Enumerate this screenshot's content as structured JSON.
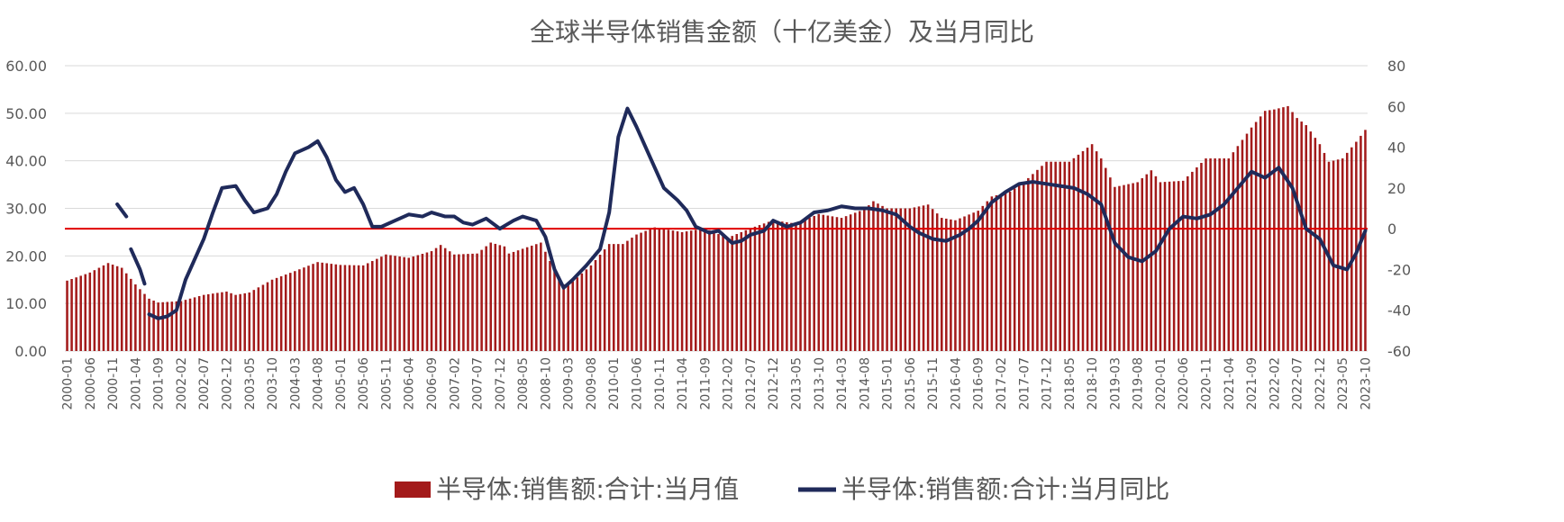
{
  "chart_data": {
    "type": "bar+line",
    "title": "全球半导体销售金额（十亿美金）及当月同比",
    "y_left": {
      "range": [
        0,
        60
      ],
      "ticks": [
        "0.00",
        "10.00",
        "20.00",
        "30.00",
        "40.00",
        "50.00",
        "60.00"
      ]
    },
    "y_right": {
      "range": [
        -60,
        80
      ],
      "ticks": [
        "-60",
        "-40",
        "-20",
        "0",
        "20",
        "40",
        "60",
        "80"
      ]
    },
    "x_start": "2000-01",
    "x_end": "2023-10",
    "x_tick_labels": [
      "2000-01",
      "2000-06",
      "2000-11",
      "2001-04",
      "2001-09",
      "2002-02",
      "2002-07",
      "2002-12",
      "2003-05",
      "2003-10",
      "2004-03",
      "2004-08",
      "2005-01",
      "2005-06",
      "2005-11",
      "2006-04",
      "2006-09",
      "2007-02",
      "2007-07",
      "2007-12",
      "2008-05",
      "2008-10",
      "2009-03",
      "2009-08",
      "2010-01",
      "2010-06",
      "2010-11",
      "2011-04",
      "2011-09",
      "2012-02",
      "2012-07",
      "2012-12",
      "2013-05",
      "2013-10",
      "2014-03",
      "2014-08",
      "2015-01",
      "2015-06",
      "2015-11",
      "2016-04",
      "2016-09",
      "2017-02",
      "2017-07",
      "2017-12",
      "2018-05",
      "2018-10",
      "2019-03",
      "2019-08",
      "2020-01",
      "2020-06",
      "2020-11",
      "2021-04",
      "2021-09",
      "2022-02",
      "2022-07",
      "2022-12",
      "2023-05",
      "2023-10"
    ],
    "bar_series": {
      "name": "半导体:销售额:合计:当月值",
      "color": "#A31A1A",
      "anchors": [
        [
          "2000-01",
          14.8
        ],
        [
          "2000-06",
          16.5
        ],
        [
          "2000-10",
          18.5
        ],
        [
          "2001-01",
          17.5
        ],
        [
          "2001-04",
          14.0
        ],
        [
          "2001-07",
          11.0
        ],
        [
          "2001-09",
          10.2
        ],
        [
          "2002-02",
          10.5
        ],
        [
          "2002-07",
          11.8
        ],
        [
          "2002-12",
          12.5
        ],
        [
          "2003-02",
          11.8
        ],
        [
          "2003-05",
          12.3
        ],
        [
          "2003-10",
          15.0
        ],
        [
          "2004-03",
          16.8
        ],
        [
          "2004-08",
          18.7
        ],
        [
          "2005-01",
          18.1
        ],
        [
          "2005-06",
          18.0
        ],
        [
          "2005-11",
          20.3
        ],
        [
          "2006-04",
          19.6
        ],
        [
          "2006-09",
          21.0
        ],
        [
          "2006-11",
          22.3
        ],
        [
          "2007-02",
          20.3
        ],
        [
          "2007-07",
          20.5
        ],
        [
          "2007-10",
          22.8
        ],
        [
          "2008-01",
          22.0
        ],
        [
          "2008-02",
          20.5
        ],
        [
          "2008-05",
          21.5
        ],
        [
          "2008-09",
          22.8
        ],
        [
          "2008-12",
          17.0
        ],
        [
          "2009-02",
          14.0
        ],
        [
          "2009-03",
          13.8
        ],
        [
          "2009-08",
          18.0
        ],
        [
          "2009-12",
          22.5
        ],
        [
          "2010-03",
          22.5
        ],
        [
          "2010-06",
          24.5
        ],
        [
          "2010-10",
          26.0
        ],
        [
          "2011-04",
          25.0
        ],
        [
          "2011-09",
          25.8
        ],
        [
          "2012-02",
          23.8
        ],
        [
          "2012-07",
          25.8
        ],
        [
          "2012-12",
          27.5
        ],
        [
          "2013-05",
          26.8
        ],
        [
          "2013-10",
          28.8
        ],
        [
          "2014-03",
          28.0
        ],
        [
          "2014-08",
          29.8
        ],
        [
          "2014-10",
          31.5
        ],
        [
          "2015-01",
          30.0
        ],
        [
          "2015-06",
          30.0
        ],
        [
          "2015-10",
          30.8
        ],
        [
          "2016-01",
          28.0
        ],
        [
          "2016-04",
          27.5
        ],
        [
          "2016-09",
          29.5
        ],
        [
          "2016-12",
          32.5
        ],
        [
          "2017-04",
          33.5
        ],
        [
          "2017-07",
          35.5
        ],
        [
          "2017-12",
          39.8
        ],
        [
          "2018-05",
          39.8
        ],
        [
          "2018-10",
          43.5
        ],
        [
          "2018-12",
          40.5
        ],
        [
          "2019-03",
          34.5
        ],
        [
          "2019-08",
          35.5
        ],
        [
          "2019-11",
          38.0
        ],
        [
          "2020-01",
          35.5
        ],
        [
          "2020-06",
          35.8
        ],
        [
          "2020-11",
          40.5
        ],
        [
          "2021-04",
          40.5
        ],
        [
          "2021-09",
          47.0
        ],
        [
          "2021-12",
          50.5
        ],
        [
          "2022-02",
          50.8
        ],
        [
          "2022-05",
          51.5
        ],
        [
          "2022-07",
          49.0
        ],
        [
          "2022-09",
          47.5
        ],
        [
          "2022-12",
          43.5
        ],
        [
          "2023-02",
          39.8
        ],
        [
          "2023-05",
          40.5
        ],
        [
          "2023-08",
          44.0
        ],
        [
          "2023-10",
          46.5
        ]
      ]
    },
    "line_series": {
      "name": "半导体:销售额:合计:当月同比",
      "color": "#1F2A5A",
      "segments": [
        [
          [
            "2000-12",
            12
          ],
          [
            "2001-02",
            6
          ]
        ],
        [
          [
            "2001-03",
            -10
          ],
          [
            "2001-05",
            -20
          ],
          [
            "2001-06",
            -27
          ]
        ],
        [
          [
            "2001-07",
            -42
          ],
          [
            "2001-09",
            -44
          ],
          [
            "2001-11",
            -43
          ],
          [
            "2002-01",
            -40
          ],
          [
            "2002-03",
            -25
          ],
          [
            "2002-07",
            -5
          ],
          [
            "2002-09",
            8
          ],
          [
            "2002-11",
            20
          ],
          [
            "2003-02",
            21
          ],
          [
            "2003-04",
            14
          ],
          [
            "2003-06",
            8
          ],
          [
            "2003-09",
            10
          ],
          [
            "2003-11",
            17
          ],
          [
            "2004-01",
            28
          ],
          [
            "2004-03",
            37
          ],
          [
            "2004-06",
            40
          ],
          [
            "2004-08",
            43
          ],
          [
            "2004-10",
            35
          ],
          [
            "2004-12",
            24
          ],
          [
            "2005-02",
            18
          ],
          [
            "2005-04",
            20
          ],
          [
            "2005-06",
            12
          ],
          [
            "2005-08",
            1
          ],
          [
            "2005-10",
            1
          ],
          [
            "2006-01",
            4
          ],
          [
            "2006-04",
            7
          ],
          [
            "2006-07",
            6
          ],
          [
            "2006-09",
            8
          ],
          [
            "2006-12",
            6
          ],
          [
            "2007-02",
            6
          ],
          [
            "2007-04",
            3
          ],
          [
            "2007-06",
            2
          ],
          [
            "2007-09",
            5
          ],
          [
            "2007-12",
            0
          ],
          [
            "2008-03",
            4
          ],
          [
            "2008-05",
            6
          ],
          [
            "2008-08",
            4
          ],
          [
            "2008-10",
            -4
          ],
          [
            "2008-12",
            -20
          ],
          [
            "2009-02",
            -29
          ],
          [
            "2009-04",
            -25
          ],
          [
            "2009-07",
            -18
          ],
          [
            "2009-10",
            -10
          ],
          [
            "2009-12",
            8
          ],
          [
            "2010-02",
            45
          ],
          [
            "2010-04",
            59
          ],
          [
            "2010-06",
            50
          ],
          [
            "2010-09",
            35
          ],
          [
            "2010-12",
            20
          ],
          [
            "2011-03",
            14
          ],
          [
            "2011-05",
            9
          ],
          [
            "2011-07",
            1
          ],
          [
            "2011-10",
            -2
          ],
          [
            "2011-12",
            -1
          ],
          [
            "2012-03",
            -7
          ],
          [
            "2012-05",
            -6
          ],
          [
            "2012-07",
            -3
          ],
          [
            "2012-10",
            -1
          ],
          [
            "2012-12",
            4
          ],
          [
            "2013-03",
            1
          ],
          [
            "2013-06",
            3
          ],
          [
            "2013-09",
            8
          ],
          [
            "2013-12",
            9
          ],
          [
            "2014-03",
            11
          ],
          [
            "2014-06",
            10
          ],
          [
            "2014-09",
            10
          ],
          [
            "2014-12",
            9
          ],
          [
            "2015-03",
            7
          ],
          [
            "2015-06",
            1
          ],
          [
            "2015-08",
            -2
          ],
          [
            "2015-11",
            -5
          ],
          [
            "2016-02",
            -6
          ],
          [
            "2016-05",
            -3
          ],
          [
            "2016-07",
            0
          ],
          [
            "2016-09",
            4
          ],
          [
            "2016-12",
            13
          ],
          [
            "2017-03",
            18
          ],
          [
            "2017-06",
            22
          ],
          [
            "2017-09",
            23
          ],
          [
            "2017-12",
            22
          ],
          [
            "2018-03",
            21
          ],
          [
            "2018-06",
            20
          ],
          [
            "2018-09",
            17
          ],
          [
            "2018-12",
            12
          ],
          [
            "2019-03",
            -7
          ],
          [
            "2019-06",
            -14
          ],
          [
            "2019-09",
            -16
          ],
          [
            "2019-12",
            -11
          ],
          [
            "2020-03",
            0
          ],
          [
            "2020-06",
            6
          ],
          [
            "2020-09",
            5
          ],
          [
            "2020-12",
            7
          ],
          [
            "2021-03",
            12
          ],
          [
            "2021-06",
            20
          ],
          [
            "2021-09",
            28
          ],
          [
            "2021-12",
            25
          ],
          [
            "2022-03",
            30
          ],
          [
            "2022-06",
            20
          ],
          [
            "2022-09",
            0
          ],
          [
            "2022-12",
            -5
          ],
          [
            "2023-03",
            -18
          ],
          [
            "2023-06",
            -20
          ],
          [
            "2023-08",
            -12
          ],
          [
            "2023-10",
            -1
          ]
        ]
      ]
    },
    "reference_line": {
      "y_right": 0,
      "color": "#E00000"
    },
    "legend": {
      "position": "bottom",
      "items": [
        "半导体:销售额:合计:当月值",
        "半导体:销售额:合计:当月同比"
      ]
    },
    "grid": true
  }
}
